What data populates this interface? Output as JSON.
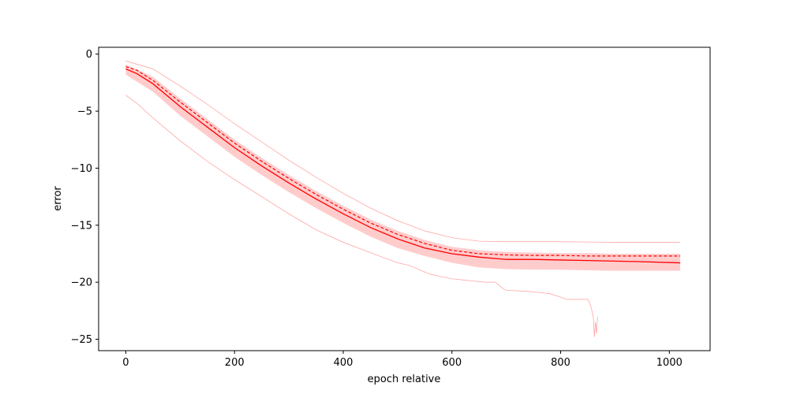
{
  "chart_data": {
    "type": "line",
    "title": "",
    "xlabel": "epoch relative",
    "ylabel": "error",
    "xlim": [
      -50,
      1075
    ],
    "ylim": [
      -26.0,
      0.6
    ],
    "xticks": [
      0,
      200,
      400,
      600,
      800,
      1000
    ],
    "yticks": [
      0,
      -5,
      -10,
      -15,
      -20,
      -25
    ],
    "xtick_labels": [
      "0",
      "200",
      "400",
      "600",
      "800",
      "1000"
    ],
    "ytick_labels": [
      "0",
      "−5",
      "−10",
      "−15",
      "−20",
      "−25"
    ],
    "grid": false,
    "legend": "none",
    "colors": {
      "line": "#ff0000",
      "band": "#ffcccc",
      "bounds": "#ff9a9a",
      "axes": "#000000"
    },
    "series": [
      {
        "role": "mean",
        "style": "solid",
        "x": [
          0,
          20,
          50,
          100,
          150,
          200,
          250,
          300,
          350,
          400,
          450,
          500,
          550,
          600,
          650,
          700,
          750,
          800,
          850,
          900,
          950,
          1020
        ],
        "y": [
          -1.3,
          -1.7,
          -2.6,
          -4.6,
          -6.4,
          -8.2,
          -9.8,
          -11.3,
          -12.7,
          -14.0,
          -15.2,
          -16.2,
          -17.0,
          -17.5,
          -17.8,
          -18.0,
          -18.0,
          -18.05,
          -18.1,
          -18.15,
          -18.2,
          -18.3
        ]
      },
      {
        "role": "median",
        "style": "dashed",
        "x": [
          0,
          20,
          50,
          100,
          150,
          200,
          250,
          300,
          350,
          400,
          450,
          500,
          550,
          600,
          650,
          700,
          750,
          800,
          850,
          900,
          950,
          1020
        ],
        "y": [
          -1.1,
          -1.4,
          -2.3,
          -4.2,
          -6.0,
          -7.8,
          -9.4,
          -10.9,
          -12.3,
          -13.6,
          -14.8,
          -15.8,
          -16.6,
          -17.2,
          -17.5,
          -17.6,
          -17.65,
          -17.65,
          -17.7,
          -17.7,
          -17.7,
          -17.7
        ]
      },
      {
        "role": "upper-bound",
        "style": "thin",
        "x": [
          0,
          50,
          100,
          150,
          200,
          250,
          300,
          350,
          400,
          450,
          500,
          550,
          600,
          650,
          700,
          800,
          900,
          1020
        ],
        "y": [
          -0.6,
          -1.3,
          -2.8,
          -4.4,
          -6.1,
          -7.7,
          -9.3,
          -10.8,
          -12.2,
          -13.5,
          -14.6,
          -15.5,
          -16.1,
          -16.4,
          -16.45,
          -16.45,
          -16.5,
          -16.5
        ]
      },
      {
        "role": "lower-bound",
        "style": "thin",
        "x": [
          0,
          20,
          50,
          100,
          150,
          200,
          250,
          300,
          350,
          400,
          450,
          500,
          520,
          540,
          560,
          580,
          600,
          620,
          640,
          660,
          680,
          695,
          700,
          740,
          760,
          780,
          800,
          810,
          830,
          850,
          855,
          860,
          862,
          864,
          866,
          868
        ],
        "y": [
          -3.6,
          -4.3,
          -5.6,
          -7.6,
          -9.4,
          -11.0,
          -12.5,
          -14.0,
          -15.4,
          -16.5,
          -17.4,
          -18.3,
          -18.5,
          -18.9,
          -19.3,
          -19.5,
          -19.7,
          -19.8,
          -19.9,
          -20.0,
          -20.0,
          -20.6,
          -20.7,
          -20.8,
          -20.9,
          -21.0,
          -21.3,
          -21.5,
          -21.5,
          -21.5,
          -22.0,
          -23.0,
          -24.8,
          -23.5,
          -24.5,
          -23.0
        ]
      }
    ],
    "band": {
      "role": "spread",
      "x": [
        0,
        50,
        100,
        150,
        200,
        250,
        300,
        350,
        400,
        450,
        500,
        550,
        600,
        650,
        700,
        750,
        800,
        850,
        900,
        950,
        1020
      ],
      "upper": [
        -0.9,
        -2.0,
        -3.9,
        -5.7,
        -7.5,
        -9.1,
        -10.6,
        -12.0,
        -13.3,
        -14.5,
        -15.5,
        -16.3,
        -16.9,
        -17.2,
        -17.35,
        -17.4,
        -17.45,
        -17.45,
        -17.5,
        -17.5,
        -17.5
      ],
      "lower": [
        -1.8,
        -3.3,
        -5.4,
        -7.2,
        -9.0,
        -10.6,
        -12.1,
        -13.5,
        -14.8,
        -16.0,
        -17.0,
        -17.7,
        -18.3,
        -18.7,
        -18.85,
        -18.9,
        -18.9,
        -18.95,
        -19.0,
        -19.0,
        -19.0
      ]
    }
  }
}
